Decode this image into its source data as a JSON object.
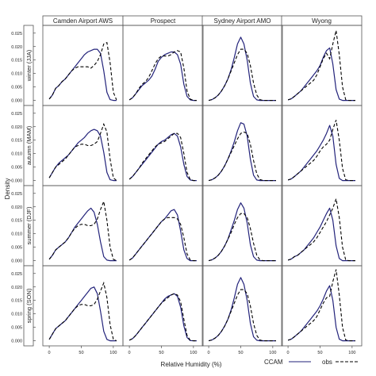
{
  "chart_data": {
    "type": "line",
    "xlabel": "Relative Humidity (%)",
    "ylabel": "Density",
    "xlim": [
      -10,
      115
    ],
    "ylim": [
      -0.001,
      0.027
    ],
    "x_ticks": [
      "0",
      "50",
      "100"
    ],
    "x_tick_values": [
      0,
      50,
      100
    ],
    "y_ticks": [
      "0.000",
      "0.005",
      "0.010",
      "0.015",
      "0.020",
      "0.025"
    ],
    "y_tick_values": [
      0,
      0.005,
      0.01,
      0.015,
      0.02,
      0.025
    ],
    "columns": [
      "Camden Airport AWS",
      "Prospect",
      "Sydney Airport AMO",
      "Wyong"
    ],
    "rows": [
      "winter (JJA)",
      "autumn (MAM)",
      "summer (DJF)",
      "spring (SON)"
    ],
    "legend": {
      "position": "bottom-right",
      "items": [
        {
          "label": "CCAM",
          "style": "solid",
          "color": "#22227a"
        },
        {
          "label": "obs",
          "style": "dashed",
          "color": "#000000"
        }
      ]
    },
    "colors": {
      "ccam": "#22227a",
      "obs": "#000000",
      "strip": "#ffffff",
      "frame": "#555555"
    },
    "x": [
      0,
      5,
      10,
      15,
      20,
      25,
      30,
      35,
      40,
      45,
      50,
      55,
      60,
      65,
      70,
      75,
      80,
      85,
      90,
      95,
      100,
      105
    ],
    "panels": [
      [
        {
          "ccam": [
            0.0005,
            0.002,
            0.0045,
            0.0055,
            0.007,
            0.008,
            0.0095,
            0.011,
            0.0125,
            0.014,
            0.0155,
            0.017,
            0.018,
            0.0185,
            0.019,
            0.019,
            0.0175,
            0.011,
            0.003,
            0.0003,
            0,
            0
          ],
          "obs": [
            0.0005,
            0.002,
            0.0045,
            0.0055,
            0.007,
            0.008,
            0.0095,
            0.011,
            0.012,
            0.0125,
            0.0125,
            0.0125,
            0.0125,
            0.012,
            0.013,
            0.0145,
            0.017,
            0.021,
            0.0215,
            0.014,
            0.003,
            0.0002
          ]
        },
        {
          "ccam": [
            0.0002,
            0.001,
            0.0025,
            0.004,
            0.0055,
            0.0065,
            0.0075,
            0.009,
            0.0115,
            0.0145,
            0.016,
            0.017,
            0.0175,
            0.018,
            0.018,
            0.017,
            0.0135,
            0.006,
            0.0015,
            0.0002,
            0,
            0
          ],
          "obs": [
            0.0002,
            0.001,
            0.0025,
            0.0045,
            0.006,
            0.007,
            0.0085,
            0.011,
            0.0135,
            0.0155,
            0.0165,
            0.0165,
            0.0165,
            0.017,
            0.018,
            0.0185,
            0.018,
            0.012,
            0.0035,
            0.0005,
            0,
            0
          ]
        },
        {
          "ccam": [
            0,
            0.0003,
            0.001,
            0.002,
            0.0035,
            0.0055,
            0.008,
            0.0115,
            0.016,
            0.021,
            0.0235,
            0.021,
            0.015,
            0.0065,
            0.0015,
            0.0002,
            0,
            0,
            0,
            0,
            0,
            0
          ],
          "obs": [
            0,
            0.0003,
            0.001,
            0.002,
            0.0035,
            0.0055,
            0.008,
            0.011,
            0.014,
            0.017,
            0.019,
            0.019,
            0.0175,
            0.013,
            0.0065,
            0.002,
            0.0003,
            0,
            0,
            0,
            0,
            0
          ]
        },
        {
          "ccam": [
            0.0002,
            0.0006,
            0.0015,
            0.0025,
            0.0035,
            0.005,
            0.0065,
            0.008,
            0.0095,
            0.011,
            0.013,
            0.016,
            0.0185,
            0.0195,
            0.0135,
            0.004,
            0.0005,
            0,
            0,
            0,
            0,
            0
          ],
          "obs": [
            0.0002,
            0.0006,
            0.0015,
            0.0025,
            0.0035,
            0.0045,
            0.0055,
            0.0065,
            0.0075,
            0.0095,
            0.0125,
            0.0155,
            0.0175,
            0.0155,
            0.021,
            0.026,
            0.017,
            0.005,
            0.0003,
            0,
            0,
            0
          ]
        }
      ],
      [
        {
          "ccam": [
            0.001,
            0.003,
            0.005,
            0.0065,
            0.0075,
            0.0085,
            0.0095,
            0.011,
            0.0125,
            0.014,
            0.015,
            0.016,
            0.0175,
            0.0185,
            0.019,
            0.0185,
            0.0165,
            0.0105,
            0.003,
            0.0003,
            0,
            0
          ],
          "obs": [
            0.001,
            0.003,
            0.005,
            0.006,
            0.007,
            0.008,
            0.0095,
            0.011,
            0.0125,
            0.013,
            0.0135,
            0.0135,
            0.013,
            0.013,
            0.0135,
            0.0145,
            0.0175,
            0.021,
            0.018,
            0.008,
            0.001,
            0
          ]
        },
        {
          "ccam": [
            0.0005,
            0.0015,
            0.003,
            0.0045,
            0.006,
            0.0075,
            0.009,
            0.0105,
            0.012,
            0.0135,
            0.0145,
            0.015,
            0.016,
            0.017,
            0.0175,
            0.0165,
            0.0125,
            0.006,
            0.0015,
            0.0002,
            0,
            0
          ],
          "obs": [
            0.0005,
            0.0015,
            0.003,
            0.0045,
            0.0065,
            0.008,
            0.0095,
            0.011,
            0.0125,
            0.0135,
            0.014,
            0.0145,
            0.0155,
            0.0165,
            0.0175,
            0.0175,
            0.016,
            0.01,
            0.003,
            0.0004,
            0,
            0
          ]
        },
        {
          "ccam": [
            0,
            0.0003,
            0.001,
            0.002,
            0.0035,
            0.0055,
            0.008,
            0.011,
            0.0145,
            0.0185,
            0.0215,
            0.021,
            0.0165,
            0.008,
            0.002,
            0.0002,
            0,
            0,
            0,
            0,
            0,
            0
          ],
          "obs": [
            0,
            0.0003,
            0.001,
            0.002,
            0.0035,
            0.0055,
            0.008,
            0.0105,
            0.013,
            0.0155,
            0.0175,
            0.018,
            0.0175,
            0.0135,
            0.0075,
            0.0025,
            0.0004,
            0,
            0,
            0,
            0,
            0
          ]
        },
        {
          "ccam": [
            0.0002,
            0.0006,
            0.0015,
            0.0025,
            0.0035,
            0.005,
            0.0065,
            0.008,
            0.0095,
            0.011,
            0.013,
            0.015,
            0.0175,
            0.0205,
            0.0165,
            0.006,
            0.0008,
            0,
            0,
            0,
            0,
            0
          ],
          "obs": [
            0.0002,
            0.0006,
            0.0015,
            0.0025,
            0.0035,
            0.0045,
            0.0055,
            0.0065,
            0.0075,
            0.009,
            0.011,
            0.0125,
            0.0135,
            0.015,
            0.019,
            0.0225,
            0.015,
            0.0045,
            0.0003,
            0,
            0,
            0
          ]
        }
      ],
      [
        {
          "ccam": [
            0.0005,
            0.002,
            0.004,
            0.005,
            0.006,
            0.007,
            0.0085,
            0.0105,
            0.0125,
            0.014,
            0.0155,
            0.017,
            0.0185,
            0.0195,
            0.018,
            0.0135,
            0.007,
            0.0015,
            0.0002,
            0,
            0,
            0
          ],
          "obs": [
            0.0005,
            0.002,
            0.004,
            0.005,
            0.006,
            0.007,
            0.0085,
            0.0105,
            0.012,
            0.013,
            0.0135,
            0.0135,
            0.013,
            0.013,
            0.0135,
            0.0155,
            0.019,
            0.022,
            0.015,
            0.005,
            0.0005,
            0
          ]
        },
        {
          "ccam": [
            0.0002,
            0.001,
            0.0025,
            0.004,
            0.0055,
            0.007,
            0.0085,
            0.01,
            0.0115,
            0.013,
            0.0145,
            0.0155,
            0.017,
            0.0185,
            0.019,
            0.017,
            0.011,
            0.004,
            0.0008,
            0,
            0,
            0
          ],
          "obs": [
            0.0002,
            0.001,
            0.0025,
            0.004,
            0.0055,
            0.007,
            0.0085,
            0.01,
            0.0115,
            0.013,
            0.0145,
            0.0155,
            0.016,
            0.016,
            0.016,
            0.0155,
            0.0135,
            0.0085,
            0.0025,
            0.0003,
            0,
            0
          ]
        },
        {
          "ccam": [
            0,
            0.0003,
            0.001,
            0.002,
            0.0035,
            0.0055,
            0.008,
            0.0115,
            0.015,
            0.019,
            0.0215,
            0.0195,
            0.014,
            0.006,
            0.0015,
            0.0002,
            0,
            0,
            0,
            0,
            0,
            0
          ],
          "obs": [
            0,
            0.0003,
            0.001,
            0.002,
            0.0035,
            0.0055,
            0.008,
            0.0105,
            0.0135,
            0.016,
            0.0175,
            0.0175,
            0.016,
            0.012,
            0.0065,
            0.002,
            0.0003,
            0,
            0,
            0,
            0,
            0
          ]
        },
        {
          "ccam": [
            0.0002,
            0.0006,
            0.0015,
            0.002,
            0.003,
            0.004,
            0.0055,
            0.007,
            0.0085,
            0.0105,
            0.0125,
            0.015,
            0.0175,
            0.0195,
            0.015,
            0.0055,
            0.0008,
            0,
            0,
            0,
            0,
            0
          ],
          "obs": [
            0.0002,
            0.0006,
            0.0015,
            0.002,
            0.003,
            0.004,
            0.005,
            0.006,
            0.007,
            0.0085,
            0.0105,
            0.0125,
            0.0145,
            0.017,
            0.0195,
            0.023,
            0.016,
            0.005,
            0.0003,
            0,
            0,
            0
          ]
        }
      ],
      [
        {
          "ccam": [
            0.0005,
            0.0025,
            0.0045,
            0.0055,
            0.0065,
            0.0075,
            0.009,
            0.0105,
            0.012,
            0.0135,
            0.015,
            0.0165,
            0.018,
            0.0195,
            0.02,
            0.0175,
            0.011,
            0.0035,
            0.0005,
            0,
            0,
            0
          ],
          "obs": [
            0.0005,
            0.0025,
            0.0045,
            0.0055,
            0.0065,
            0.0075,
            0.009,
            0.0105,
            0.012,
            0.013,
            0.0135,
            0.0135,
            0.013,
            0.013,
            0.0135,
            0.0155,
            0.0185,
            0.0215,
            0.016,
            0.006,
            0.0006,
            0
          ]
        },
        {
          "ccam": [
            0.0002,
            0.0008,
            0.002,
            0.0035,
            0.005,
            0.0065,
            0.008,
            0.0095,
            0.011,
            0.0125,
            0.014,
            0.0155,
            0.0165,
            0.017,
            0.0175,
            0.0165,
            0.0125,
            0.0055,
            0.0012,
            0.0001,
            0,
            0
          ],
          "obs": [
            0.0002,
            0.0008,
            0.002,
            0.0035,
            0.005,
            0.0065,
            0.008,
            0.0095,
            0.011,
            0.0125,
            0.014,
            0.015,
            0.016,
            0.017,
            0.0175,
            0.017,
            0.0145,
            0.008,
            0.002,
            0.0002,
            0,
            0
          ]
        },
        {
          "ccam": [
            0,
            0.0003,
            0.001,
            0.002,
            0.0035,
            0.0055,
            0.008,
            0.0115,
            0.016,
            0.021,
            0.0235,
            0.021,
            0.015,
            0.0065,
            0.0015,
            0.0002,
            0,
            0,
            0,
            0,
            0,
            0
          ],
          "obs": [
            0,
            0.0003,
            0.001,
            0.002,
            0.0035,
            0.0055,
            0.008,
            0.011,
            0.014,
            0.017,
            0.019,
            0.019,
            0.0175,
            0.013,
            0.0065,
            0.002,
            0.0003,
            0,
            0,
            0,
            0,
            0
          ]
        },
        {
          "ccam": [
            0.0002,
            0.0006,
            0.0015,
            0.0025,
            0.0035,
            0.005,
            0.0065,
            0.008,
            0.0095,
            0.011,
            0.013,
            0.0155,
            0.0185,
            0.0205,
            0.015,
            0.005,
            0.0006,
            0,
            0,
            0,
            0,
            0
          ],
          "obs": [
            0.0002,
            0.0006,
            0.0015,
            0.0025,
            0.0035,
            0.0045,
            0.0055,
            0.0065,
            0.0075,
            0.009,
            0.0115,
            0.014,
            0.016,
            0.0165,
            0.022,
            0.0265,
            0.017,
            0.005,
            0.0003,
            0,
            0,
            0
          ]
        }
      ]
    ]
  }
}
